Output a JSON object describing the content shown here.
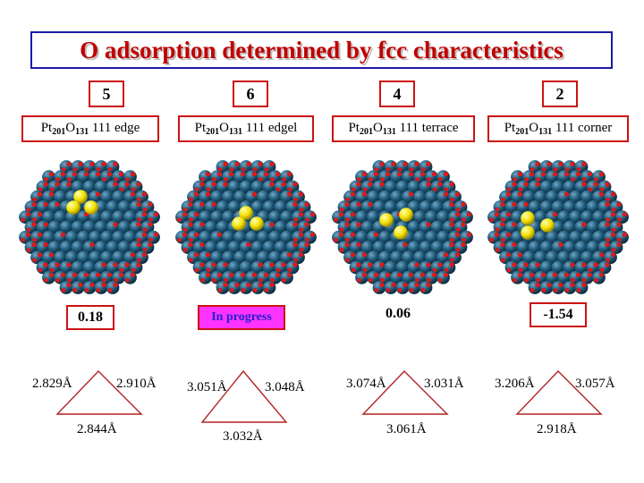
{
  "title": "O adsorption determined by fcc characteristics",
  "columns": [
    {
      "number": "5",
      "label": {
        "el1": "Pt",
        "sub1": "201",
        "el2": "O",
        "sub2": "131",
        "rest": " 111 edge"
      },
      "value": "0.18",
      "value_highlight": false,
      "distances": {
        "left": "2.829Å",
        "right": "2.910Å",
        "bottom": "2.844Å"
      }
    },
    {
      "number": "6",
      "label": {
        "el1": "Pt",
        "sub1": "201",
        "el2": "O",
        "sub2": "131",
        "rest": " 111 edgel"
      },
      "value": "In progress",
      "value_highlight": true,
      "distances": {
        "left": "3.051Å",
        "right": "3.048Å",
        "bottom": "3.032Å"
      }
    },
    {
      "number": "4",
      "label": {
        "el1": "Pt",
        "sub1": "201",
        "el2": "O",
        "sub2": "131",
        "rest": " 111 terrace"
      },
      "value": "0.06",
      "value_highlight": false,
      "distances": {
        "left": "3.074Å",
        "right": "3.031Å",
        "bottom": "3.061Å"
      }
    },
    {
      "number": "2",
      "label": {
        "el1": "Pt",
        "sub1": "201",
        "el2": "O",
        "sub2": "131",
        "rest": " 111 corner"
      },
      "value": "-1.54",
      "value_highlight": false,
      "distances": {
        "left": "3.206Å",
        "right": "3.057Å",
        "bottom": "2.918Å"
      }
    }
  ],
  "colors": {
    "title_text": "#c00000",
    "title_border": "#1a1aa6",
    "box_border": "#cc1111",
    "highlight_bg": "#ff33ff",
    "highlight_text": "#2222cc",
    "pt_atom": "#1f5a7a",
    "o_atom": "#e01818",
    "adsorbate_atom": "#f2e000",
    "triangle": "#b22222"
  }
}
